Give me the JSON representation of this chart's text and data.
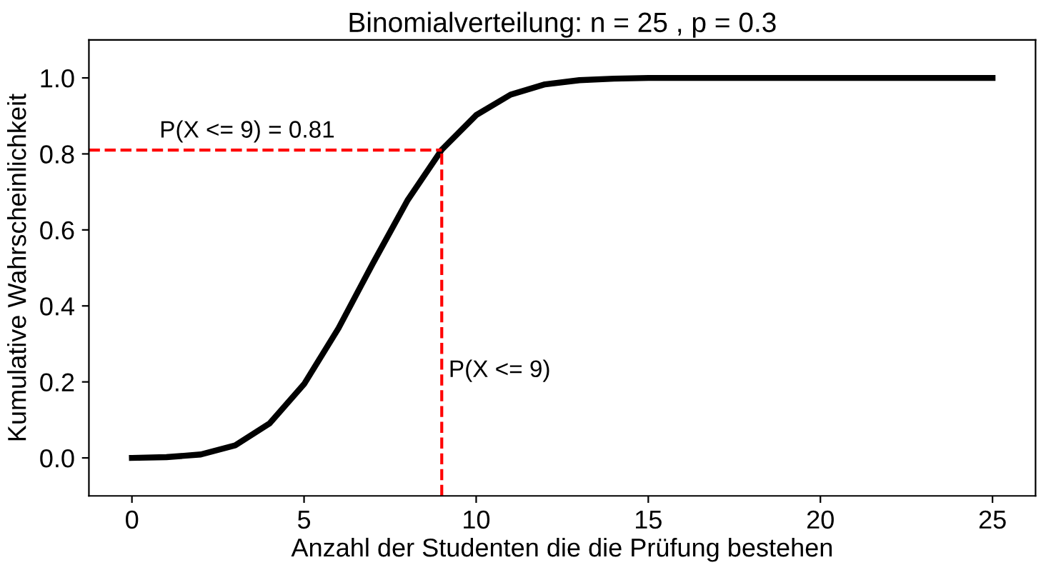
{
  "chart_data": {
    "type": "line",
    "title": "Binomialverteilung: n = 25 , p = 0.3",
    "xlabel": "Anzahl der Studenten die die Prüfung bestehen",
    "ylabel": "Kumulative Wahrscheinlichkeit",
    "x": [
      0,
      1,
      2,
      3,
      4,
      5,
      6,
      7,
      8,
      9,
      10,
      11,
      12,
      13,
      14,
      15,
      16,
      17,
      18,
      19,
      20,
      21,
      22,
      23,
      24,
      25
    ],
    "series": [
      {
        "color": "#000000",
        "values": [
          0.0,
          0.002,
          0.009,
          0.033,
          0.091,
          0.194,
          0.341,
          0.512,
          0.677,
          0.811,
          0.902,
          0.956,
          0.983,
          0.994,
          0.998,
          1.0,
          1.0,
          1.0,
          1.0,
          1.0,
          1.0,
          1.0,
          1.0,
          1.0,
          1.0,
          1.0
        ]
      }
    ],
    "xlim": [
      -1.25,
      26.25
    ],
    "xticks": [
      0,
      5,
      10,
      15,
      20,
      25
    ],
    "ylim": [
      -0.1,
      1.1
    ],
    "yticks": [
      {
        "value": 0,
        "label": "0.0"
      },
      0.2,
      0.4,
      0.6,
      0.8,
      {
        "value": 1,
        "label": "1.0"
      }
    ],
    "ref_lines": [
      {
        "axis": "y",
        "value": 0.81,
        "label": "P(X <= 9) = 0.81",
        "color": "#ff0000",
        "line_style": "dashed"
      },
      {
        "axis": "x",
        "value": 9,
        "label": "P(X <= 9)",
        "color": "#ff0000",
        "line_style": "dashed"
      }
    ],
    "grid": false,
    "legend": false,
    "marker": "none",
    "line_style": "solid"
  }
}
